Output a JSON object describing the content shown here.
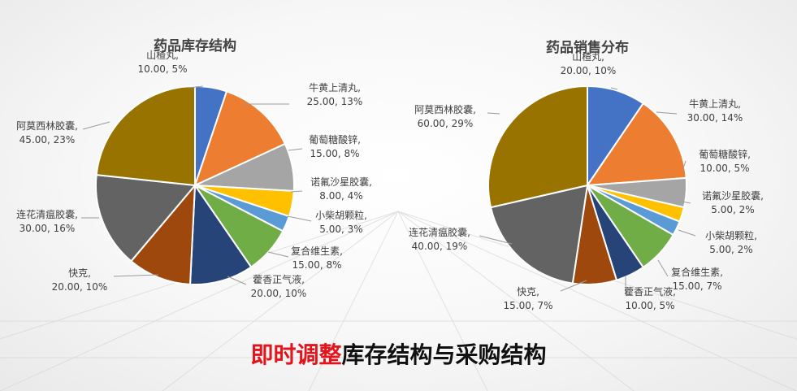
{
  "chart_data": [
    {
      "type": "pie",
      "title": "药品库存结构",
      "slices": [
        {
          "name": "山楂丸",
          "value": 10.0,
          "percent": "5%",
          "color": "#4472C4"
        },
        {
          "name": "牛黄上清丸",
          "value": 25.0,
          "percent": "13%",
          "color": "#ED7D31"
        },
        {
          "name": "葡萄糖酸锌",
          "value": 15.0,
          "percent": "8%",
          "color": "#A5A5A5"
        },
        {
          "name": "诺氟沙星胶囊",
          "value": 8.0,
          "percent": "4%",
          "color": "#FFC000"
        },
        {
          "name": "小柴胡颗粒",
          "value": 5.0,
          "percent": "3%",
          "color": "#5B9BD5"
        },
        {
          "name": "复合维生素",
          "value": 15.0,
          "percent": "8%",
          "color": "#70AD47"
        },
        {
          "name": "藿香正气液",
          "value": 20.0,
          "percent": "10%",
          "color": "#264478"
        },
        {
          "name": "快克",
          "value": 20.0,
          "percent": "10%",
          "color": "#9E480E"
        },
        {
          "name": "连花清瘟胶囊",
          "value": 30.0,
          "percent": "16%",
          "color": "#636363"
        },
        {
          "name": "阿莫西林胶囊",
          "value": 45.0,
          "percent": "23%",
          "color": "#997300"
        }
      ]
    },
    {
      "type": "pie",
      "title": "药品销售分布",
      "slices": [
        {
          "name": "山楂丸",
          "value": 20.0,
          "percent": "10%",
          "color": "#4472C4"
        },
        {
          "name": "牛黄上清丸",
          "value": 30.0,
          "percent": "14%",
          "color": "#ED7D31"
        },
        {
          "name": "葡萄糖酸锌",
          "value": 10.0,
          "percent": "5%",
          "color": "#A5A5A5"
        },
        {
          "name": "诺氟沙星胶囊",
          "value": 5.0,
          "percent": "2%",
          "color": "#FFC000"
        },
        {
          "name": "小柴胡颗粒",
          "value": 5.0,
          "percent": "2%",
          "color": "#5B9BD5"
        },
        {
          "name": "复合维生素",
          "value": 15.0,
          "percent": "7%",
          "color": "#70AD47"
        },
        {
          "name": "藿香正气液",
          "value": 10.0,
          "percent": "5%",
          "color": "#264478"
        },
        {
          "name": "快克",
          "value": 15.0,
          "percent": "7%",
          "color": "#9E480E"
        },
        {
          "name": "连花清瘟胶囊",
          "value": 40.0,
          "percent": "19%",
          "color": "#636363"
        },
        {
          "name": "阿莫西林胶囊",
          "value": 60.0,
          "percent": "29%",
          "color": "#997300"
        }
      ]
    }
  ],
  "caption": {
    "highlight": "即时调整",
    "rest": "库存结构与采购结构"
  }
}
